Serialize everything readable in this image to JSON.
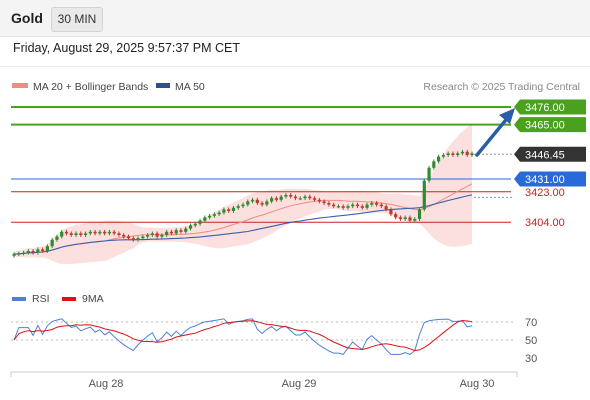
{
  "header": {
    "symbol": "Gold",
    "timeframe": "30 MIN",
    "timestamp": "Friday, August 29, 2025 9:57:37 PM CET"
  },
  "main_chart": {
    "legend": [
      {
        "label": "MA 20 + Bollinger Bands",
        "color": "#f28b82"
      },
      {
        "label": "MA 50",
        "color": "#2f4f8f"
      }
    ],
    "credit": "Research © 2025 Trading Central",
    "levels": [
      {
        "value": 3476.0,
        "label": "3476.00",
        "kind": "target",
        "color": "#4aa11e"
      },
      {
        "value": 3465.0,
        "label": "3465.00",
        "kind": "target",
        "color": "#4aa11e"
      },
      {
        "value": 3446.45,
        "label": "3446.45",
        "kind": "last-price",
        "color": "#333333"
      },
      {
        "value": 3431.0,
        "label": "3431.00",
        "kind": "pivot",
        "color": "#2a6ad8"
      },
      {
        "value": 3423.0,
        "label": "3423.00",
        "kind": "support",
        "color": "#cc2222"
      },
      {
        "value": 3404.0,
        "label": "3404.00",
        "kind": "support",
        "color": "#cc2222"
      }
    ],
    "colors": {
      "up": "#2e8b2e",
      "down": "#c0392b",
      "band": "#fcd9d9",
      "ma20": "#f28b82",
      "ma50": "#3a5fa8"
    }
  },
  "rsi_panel": {
    "legend": [
      {
        "label": "RSI",
        "color": "#4f7fd8"
      },
      {
        "label": "9MA",
        "color": "#dd1111"
      }
    ],
    "levels": [
      "70",
      "50",
      "30"
    ],
    "level_values": [
      70,
      50,
      30
    ]
  },
  "x_axis": {
    "labels": [
      "Aug 28",
      "Aug 29",
      "Aug 30"
    ]
  }
}
